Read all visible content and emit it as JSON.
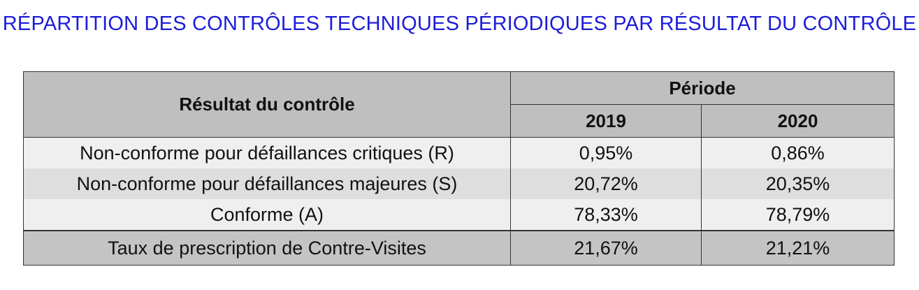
{
  "chart_data": {
    "type": "table",
    "title": "RÉPARTITION DES CONTRÔLES TECHNIQUES PÉRIODIQUES PAR RÉSULTAT DU CONTRÔLE",
    "header": {
      "row_label": "Résultat du contrôle",
      "group_label": "Période",
      "columns": [
        "2019",
        "2020"
      ]
    },
    "rows": [
      {
        "label": "Non-conforme pour défaillances critiques (R)",
        "values": [
          "0,95%",
          "0,86%"
        ]
      },
      {
        "label": "Non-conforme pour défaillances majeures (S)",
        "values": [
          "20,72%",
          "20,35%"
        ]
      },
      {
        "label": "Conforme (A)",
        "values": [
          "78,33%",
          "78,79%"
        ]
      },
      {
        "label": "Taux de prescription de Contre-Visites",
        "values": [
          "21,67%",
          "21,21%"
        ]
      }
    ],
    "colors": {
      "title": "#1c1cd9",
      "header_bg": "#bfbfbf",
      "row_light": "#efefef",
      "row_mid": "#dedede",
      "total_bg": "#c4c4c4"
    }
  }
}
